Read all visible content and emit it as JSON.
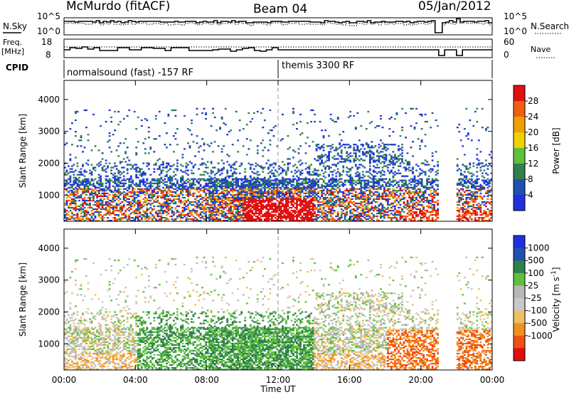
{
  "header": {
    "station": "McMurdo (fitACF)",
    "beam": "Beam 04",
    "date": "05/Jan/2012"
  },
  "noise_panel": {
    "left_label": "N.Sky",
    "right_label": "N.Search",
    "left_ticks": [
      "10^5",
      "10^0"
    ],
    "right_ticks": [
      "10^5",
      "10^0"
    ]
  },
  "freq_panel": {
    "left_label_1": "Freq.",
    "left_label_2": "[MHz]",
    "left_ticks": [
      "18",
      "8"
    ],
    "right_label": "Nave",
    "right_ticks": [
      "60",
      "0"
    ]
  },
  "cpid": {
    "label": "CPID",
    "segments": [
      {
        "start": 0,
        "end": 12,
        "text": "normalsound (fast) -157 RF"
      },
      {
        "start": 12,
        "end": 24,
        "text": "themis 3300 RF"
      }
    ]
  },
  "colors": {
    "power": [
      "#2030e0",
      "#2050b0",
      "#2f7f4f",
      "#5fbf3f",
      "#f0d000",
      "#f0a000",
      "#f06010",
      "#e01010"
    ],
    "velocity": [
      "#e01010",
      "#f05010",
      "#f09020",
      "#f0c060",
      "#c8c8c8",
      "#b8b8b8",
      "#60c040",
      "#2f7f4f",
      "#2050b0",
      "#2030e0"
    ]
  },
  "chart_data": [
    {
      "type": "heatmap",
      "title": "Power",
      "xlabel": "Time UT",
      "ylabel": "Slant Range [km]",
      "x_ticks": [
        "00:00",
        "04:00",
        "08:00",
        "12:00",
        "16:00",
        "20:00",
        "00:00"
      ],
      "y_ticks": [
        1000,
        2000,
        3000,
        4000
      ],
      "xlim_hours": [
        0,
        24
      ],
      "ylim": [
        180,
        4600
      ],
      "colorbar": {
        "label": "Power [dB]",
        "ticks": [
          "28",
          "24",
          "20",
          "16",
          "12",
          "8",
          "4"
        ]
      },
      "data_gaps_hours": [
        [
          21.0,
          22.0
        ]
      ]
    },
    {
      "type": "heatmap",
      "title": "Velocity",
      "xlabel": "Time UT",
      "ylabel": "Slant Range [km]",
      "x_ticks": [
        "00:00",
        "04:00",
        "08:00",
        "12:00",
        "16:00",
        "20:00",
        "00:00"
      ],
      "y_ticks": [
        1000,
        2000,
        3000,
        4000
      ],
      "xlim_hours": [
        0,
        24
      ],
      "ylim": [
        180,
        4600
      ],
      "colorbar": {
        "label_main": "Velocity",
        "label_unit": "[m s",
        "label_exp": "-1",
        "label_close": "]",
        "ticks": [
          "1000",
          "500",
          "100",
          "25",
          "-25",
          "-100",
          "-500",
          "-1000"
        ]
      },
      "data_gaps_hours": [
        [
          21.0,
          22.0
        ]
      ]
    }
  ],
  "x_axis_title": "Time UT"
}
